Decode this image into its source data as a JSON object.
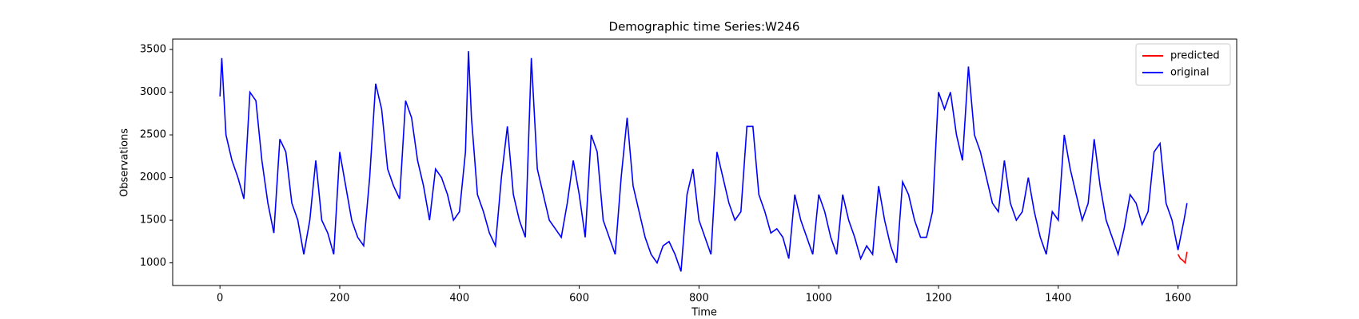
{
  "chart_data": {
    "type": "line",
    "title": "Demographic time Series:W246",
    "x_label": "Time",
    "y_label": "Observations",
    "xlim": [
      -79,
      1698
    ],
    "ylim": [
      735,
      3622
    ],
    "xticks": [
      0,
      200,
      400,
      600,
      800,
      1000,
      1200,
      1400,
      1600
    ],
    "yticks": [
      1000,
      1500,
      2000,
      2500,
      3000,
      3500
    ],
    "legend": "upper right",
    "series": [
      {
        "name": "predicted",
        "color": "#ff0000",
        "x": [
          1600,
          1604,
          1608,
          1612,
          1615
        ],
        "values": [
          1100,
          1050,
          1030,
          1000,
          1130
        ]
      },
      {
        "name": "original",
        "color": "#0000ff",
        "x": [
          0,
          3,
          10,
          20,
          30,
          40,
          50,
          60,
          70,
          80,
          90,
          100,
          110,
          120,
          130,
          140,
          150,
          160,
          170,
          180,
          190,
          200,
          210,
          220,
          230,
          240,
          250,
          260,
          270,
          280,
          290,
          300,
          310,
          320,
          330,
          340,
          350,
          360,
          370,
          380,
          390,
          400,
          410,
          415,
          420,
          430,
          440,
          450,
          460,
          470,
          480,
          490,
          500,
          510,
          520,
          530,
          540,
          550,
          560,
          570,
          580,
          590,
          600,
          610,
          620,
          630,
          640,
          650,
          660,
          670,
          680,
          690,
          700,
          710,
          720,
          730,
          740,
          750,
          760,
          770,
          780,
          790,
          800,
          810,
          820,
          830,
          840,
          850,
          860,
          870,
          880,
          890,
          900,
          910,
          920,
          930,
          940,
          950,
          960,
          970,
          980,
          990,
          1000,
          1010,
          1020,
          1030,
          1040,
          1050,
          1060,
          1070,
          1080,
          1090,
          1100,
          1110,
          1120,
          1130,
          1140,
          1150,
          1160,
          1170,
          1180,
          1190,
          1200,
          1210,
          1220,
          1230,
          1240,
          1250,
          1260,
          1270,
          1280,
          1290,
          1300,
          1310,
          1320,
          1330,
          1340,
          1350,
          1360,
          1370,
          1380,
          1390,
          1400,
          1410,
          1420,
          1430,
          1440,
          1450,
          1460,
          1470,
          1480,
          1490,
          1500,
          1510,
          1520,
          1530,
          1540,
          1550,
          1560,
          1570,
          1580,
          1590,
          1600,
          1610,
          1615
        ],
        "values": [
          2950,
          3400,
          2500,
          2200,
          2000,
          1750,
          3000,
          2900,
          2200,
          1700,
          1350,
          2450,
          2300,
          1700,
          1500,
          1100,
          1500,
          2200,
          1500,
          1350,
          1100,
          2300,
          1900,
          1500,
          1300,
          1200,
          2000,
          3100,
          2800,
          2100,
          1900,
          1750,
          2900,
          2700,
          2200,
          1900,
          1500,
          2100,
          2000,
          1800,
          1500,
          1600,
          2300,
          3480,
          2700,
          1800,
          1600,
          1350,
          1200,
          2000,
          2600,
          1800,
          1500,
          1300,
          3400,
          2100,
          1800,
          1500,
          1400,
          1300,
          1700,
          2200,
          1800,
          1300,
          2500,
          2300,
          1500,
          1300,
          1100,
          2000,
          2700,
          1900,
          1600,
          1300,
          1100,
          1000,
          1200,
          1250,
          1100,
          900,
          1800,
          2100,
          1500,
          1300,
          1100,
          2300,
          2000,
          1700,
          1500,
          1600,
          2600,
          2600,
          1800,
          1600,
          1350,
          1400,
          1300,
          1050,
          1800,
          1500,
          1300,
          1100,
          1800,
          1600,
          1300,
          1100,
          1800,
          1500,
          1300,
          1050,
          1200,
          1100,
          1900,
          1500,
          1200,
          1000,
          1950,
          1800,
          1500,
          1300,
          1300,
          1600,
          3000,
          2800,
          3000,
          2500,
          2200,
          3300,
          2500,
          2300,
          2000,
          1700,
          1600,
          2200,
          1700,
          1500,
          1600,
          2000,
          1600,
          1300,
          1100,
          1600,
          1500,
          2500,
          2100,
          1800,
          1500,
          1700,
          2450,
          1900,
          1500,
          1300,
          1100,
          1400,
          1800,
          1700,
          1450,
          1600,
          2300,
          2400,
          1700,
          1500,
          1150,
          1500,
          1700
        ]
      }
    ]
  }
}
